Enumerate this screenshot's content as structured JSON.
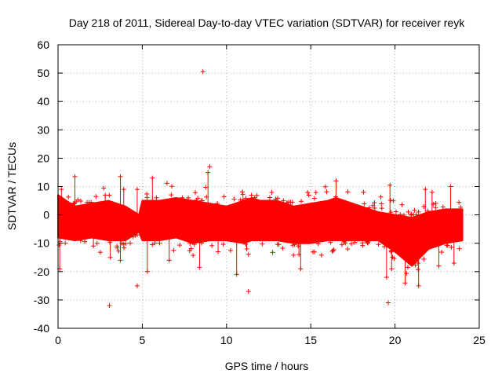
{
  "chart_data": {
    "type": "scatter",
    "title": "Day 218 of 2011, Sidereal Day-to-day VTEC variation (SDTVAR) for receiver reyk",
    "xlabel": "GPS time / hours",
    "ylabel": "SDTVAR / TECUs",
    "xlim": [
      0,
      25
    ],
    "ylim": [
      -40,
      60
    ],
    "xticks": [
      0,
      5,
      10,
      15,
      20,
      25
    ],
    "yticks": [
      -40,
      -30,
      -20,
      -10,
      0,
      10,
      20,
      30,
      40,
      50,
      60
    ],
    "grid": true,
    "marker": "plus",
    "series_color": "#ff0000",
    "band": {
      "x": [
        0,
        1,
        2,
        3,
        4,
        4.8,
        5,
        6,
        7,
        8,
        9,
        10,
        11,
        11.5,
        12,
        13,
        14,
        15,
        16,
        16.5,
        17,
        18,
        19,
        20,
        21,
        22,
        23,
        24
      ],
      "upper": [
        7,
        3,
        4,
        5,
        3,
        0,
        5,
        5,
        6,
        5,
        4,
        3,
        5,
        6,
        5,
        5,
        3,
        4,
        5,
        6,
        5,
        3,
        1,
        0,
        -1,
        1,
        2,
        2
      ],
      "lower": [
        -8,
        -9,
        -8,
        -9,
        -9,
        -6,
        -9,
        -9,
        -8,
        -10,
        -9,
        -9,
        -10,
        -9,
        -9,
        -9,
        -10,
        -10,
        -9,
        -9,
        -9,
        -9,
        -9,
        -13,
        -18,
        -12,
        -10,
        -9
      ]
    },
    "outliers": [
      {
        "x": 8.6,
        "y": 50.5
      },
      {
        "x": 3.7,
        "y": 13.5
      },
      {
        "x": 9.0,
        "y": 17
      },
      {
        "x": 8.9,
        "y": 15
      },
      {
        "x": 1.0,
        "y": 13.5
      },
      {
        "x": 5.6,
        "y": 13
      },
      {
        "x": 16.5,
        "y": 12
      },
      {
        "x": 19.7,
        "y": 10.5
      },
      {
        "x": 3.9,
        "y": 9
      },
      {
        "x": 4.7,
        "y": 9
      },
      {
        "x": 21.8,
        "y": 9
      },
      {
        "x": 22.2,
        "y": 8
      },
      {
        "x": 23.3,
        "y": 10
      },
      {
        "x": 2.8,
        "y": 7
      },
      {
        "x": 0.2,
        "y": 9
      },
      {
        "x": 0.1,
        "y": -19
      },
      {
        "x": 2.1,
        "y": -11
      },
      {
        "x": 3.1,
        "y": -15
      },
      {
        "x": 3.7,
        "y": -16
      },
      {
        "x": 5.3,
        "y": -20
      },
      {
        "x": 6.6,
        "y": -16
      },
      {
        "x": 8.4,
        "y": -18.5
      },
      {
        "x": 9.5,
        "y": -13
      },
      {
        "x": 10.6,
        "y": -21
      },
      {
        "x": 11.3,
        "y": -27
      },
      {
        "x": 14.4,
        "y": -19
      },
      {
        "x": 19.5,
        "y": -22
      },
      {
        "x": 19.8,
        "y": -19
      },
      {
        "x": 20.6,
        "y": -24
      },
      {
        "x": 21.4,
        "y": -25
      },
      {
        "x": 22.6,
        "y": -18
      },
      {
        "x": 23.5,
        "y": -17
      },
      {
        "x": 3.05,
        "y": -32
      },
      {
        "x": 4.7,
        "y": -25
      },
      {
        "x": 19.6,
        "y": -31
      },
      {
        "x": 11.2,
        "y": -12
      },
      {
        "x": 14.3,
        "y": -14
      }
    ]
  }
}
